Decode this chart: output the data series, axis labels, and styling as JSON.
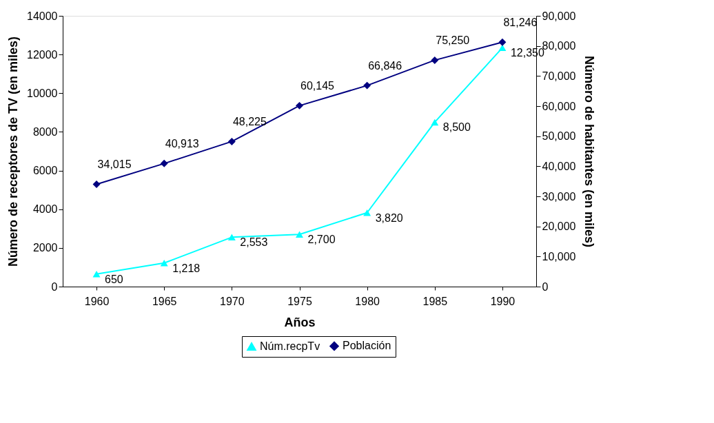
{
  "chart_data": {
    "type": "line",
    "xlabel": "Años",
    "ylabel": "Número de receptores de TV (en miles)",
    "y2label": "Número de habitantes (en miles)",
    "categories": [
      "1960",
      "1965",
      "1970",
      "1975",
      "1980",
      "1985",
      "1990"
    ],
    "series": [
      {
        "name": "Núm.recpTv",
        "color": "#00ffff",
        "marker": "triangle",
        "values": [
          650,
          1218,
          2553,
          2700,
          3820,
          8500,
          12350
        ],
        "value_labels": [
          "650",
          "1,218",
          "2,553",
          "2,700",
          "3,820",
          "8,500",
          "12,350"
        ]
      },
      {
        "name": "Población",
        "color": "#000080",
        "marker": "diamond",
        "axis": "y2",
        "values": [
          34015,
          40913,
          48225,
          60145,
          66846,
          75250,
          81246
        ],
        "value_labels": [
          "34,015",
          "40,913",
          "48,225",
          "60,145",
          "66,846",
          "75,250",
          "81,246"
        ]
      }
    ],
    "ylim": [
      0,
      14000
    ],
    "yticks": [
      0,
      2000,
      4000,
      6000,
      8000,
      10000,
      12000,
      14000
    ],
    "y2lim": [
      0,
      90000
    ],
    "y2ticks": [
      {
        "value": 0,
        "label": "0"
      },
      {
        "value": 10000,
        "label": "10,000"
      },
      {
        "value": 20000,
        "label": "20,000"
      },
      {
        "value": 30000,
        "label": "30,000"
      },
      {
        "value": 40000,
        "label": "40,000"
      },
      {
        "value": 50000,
        "label": "50,000"
      },
      {
        "value": 60000,
        "label": "60,000"
      },
      {
        "value": 70000,
        "label": "70,000"
      },
      {
        "value": 80000,
        "label": "80,000"
      },
      {
        "value": 90000,
        "label": "90,000"
      }
    ],
    "legend": "bottom",
    "line_style": "solid"
  }
}
